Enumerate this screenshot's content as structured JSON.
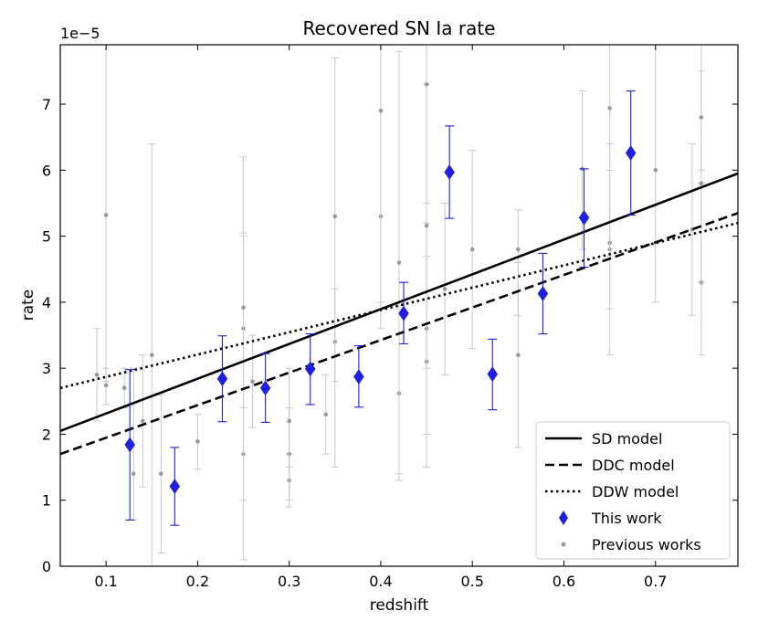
{
  "chart_data": {
    "type": "scatter",
    "title": "Recovered SN Ia rate",
    "xlabel": "redshift",
    "ylabel": "rate",
    "y_offset_label": "1e−5",
    "xlim": [
      0.05,
      0.79
    ],
    "ylim": [
      0,
      7.9
    ],
    "xticks": [
      0.1,
      0.2,
      0.3,
      0.4,
      0.5,
      0.6,
      0.7
    ],
    "xtick_labels": [
      "0.1",
      "0.2",
      "0.3",
      "0.4",
      "0.5",
      "0.6",
      "0.7"
    ],
    "yticks": [
      0,
      1,
      2,
      3,
      4,
      5,
      6,
      7
    ],
    "ytick_labels": [
      "0",
      "1",
      "2",
      "3",
      "4",
      "5",
      "6",
      "7"
    ],
    "grid": false,
    "legend_position": "bottom-right",
    "models": [
      {
        "name": "SD model",
        "style": "solid",
        "x": [
          0.05,
          0.79
        ],
        "y": [
          2.05,
          5.95
        ]
      },
      {
        "name": "DDC model",
        "style": "dashed",
        "x": [
          0.05,
          0.79
        ],
        "y": [
          1.7,
          5.35
        ]
      },
      {
        "name": "DDW model",
        "style": "dotted",
        "x": [
          0.05,
          0.79
        ],
        "y": [
          2.7,
          5.2
        ]
      }
    ],
    "this_work": {
      "name": "This work",
      "color": "#1f1fe0",
      "points": [
        {
          "x": 0.126,
          "y": 1.84,
          "lo": 0.7,
          "hi": 2.98
        },
        {
          "x": 0.175,
          "y": 1.21,
          "lo": 0.62,
          "hi": 1.8
        },
        {
          "x": 0.227,
          "y": 2.84,
          "lo": 2.19,
          "hi": 3.49
        },
        {
          "x": 0.274,
          "y": 2.7,
          "lo": 2.18,
          "hi": 3.22
        },
        {
          "x": 0.323,
          "y": 2.99,
          "lo": 2.45,
          "hi": 3.52
        },
        {
          "x": 0.376,
          "y": 2.87,
          "lo": 2.41,
          "hi": 3.34
        },
        {
          "x": 0.425,
          "y": 3.83,
          "lo": 3.37,
          "hi": 4.3
        },
        {
          "x": 0.475,
          "y": 5.97,
          "lo": 5.27,
          "hi": 6.67
        },
        {
          "x": 0.522,
          "y": 2.91,
          "lo": 2.37,
          "hi": 3.44
        },
        {
          "x": 0.577,
          "y": 4.13,
          "lo": 3.52,
          "hi": 4.74
        },
        {
          "x": 0.622,
          "y": 5.28,
          "lo": 4.53,
          "hi": 6.02
        },
        {
          "x": 0.673,
          "y": 6.26,
          "lo": 5.32,
          "hi": 7.2
        }
      ]
    },
    "previous_works": {
      "name": "Previous works",
      "color": "#999999",
      "points": [
        {
          "x": 0.09,
          "y": 2.9,
          "lo": 2.2,
          "hi": 3.6
        },
        {
          "x": 0.1,
          "y": 2.74,
          "lo": 2.45,
          "hi": 3.0
        },
        {
          "x": 0.1,
          "y": 5.32,
          "lo": 2.8,
          "hi": 7.9
        },
        {
          "x": 0.12,
          "y": 2.7,
          "lo": 2.4,
          "hi": 3.0
        },
        {
          "x": 0.13,
          "y": 1.4,
          "lo": 0.7,
          "hi": 3.0
        },
        {
          "x": 0.14,
          "y": 2.2,
          "lo": 1.2,
          "hi": 3.2
        },
        {
          "x": 0.15,
          "y": 3.2,
          "lo": 0.0,
          "hi": 6.4
        },
        {
          "x": 0.16,
          "y": 1.4,
          "lo": 0.2,
          "hi": 2.6
        },
        {
          "x": 0.2,
          "y": 1.89,
          "lo": 1.47,
          "hi": 2.3
        },
        {
          "x": 0.25,
          "y": 1.7,
          "lo": 0.1,
          "hi": 6.2
        },
        {
          "x": 0.25,
          "y": 3.6,
          "lo": 1.0,
          "hi": 5.05
        },
        {
          "x": 0.25,
          "y": 3.92,
          "lo": 2.4,
          "hi": 5.0
        },
        {
          "x": 0.26,
          "y": 2.8,
          "lo": 2.1,
          "hi": 3.5
        },
        {
          "x": 0.3,
          "y": 1.3,
          "lo": 0.9,
          "hi": 1.7
        },
        {
          "x": 0.3,
          "y": 1.7,
          "lo": 1.0,
          "hi": 2.4
        },
        {
          "x": 0.3,
          "y": 2.2,
          "lo": 1.5,
          "hi": 3.0
        },
        {
          "x": 0.34,
          "y": 2.3,
          "lo": 1.7,
          "hi": 2.9
        },
        {
          "x": 0.35,
          "y": 3.4,
          "lo": 1.5,
          "hi": 4.2
        },
        {
          "x": 0.35,
          "y": 5.3,
          "lo": 2.8,
          "hi": 7.7
        },
        {
          "x": 0.4,
          "y": 5.3,
          "lo": 3.6,
          "hi": 7.9
        },
        {
          "x": 0.4,
          "y": 6.9,
          "lo": 4.0,
          "hi": 7.9
        },
        {
          "x": 0.42,
          "y": 2.62,
          "lo": 1.3,
          "hi": 3.9
        },
        {
          "x": 0.42,
          "y": 4.6,
          "lo": 1.4,
          "hi": 7.8
        },
        {
          "x": 0.45,
          "y": 3.1,
          "lo": 1.5,
          "hi": 4.7
        },
        {
          "x": 0.45,
          "y": 3.6,
          "lo": 2.0,
          "hi": 5.2
        },
        {
          "x": 0.45,
          "y": 5.16,
          "lo": 3.0,
          "hi": 7.3
        },
        {
          "x": 0.45,
          "y": 7.3,
          "lo": 5.5,
          "hi": 7.9
        },
        {
          "x": 0.47,
          "y": 4.2,
          "lo": 2.9,
          "hi": 5.5
        },
        {
          "x": 0.5,
          "y": 4.8,
          "lo": 3.3,
          "hi": 6.3
        },
        {
          "x": 0.55,
          "y": 3.2,
          "lo": 1.8,
          "hi": 4.6
        },
        {
          "x": 0.55,
          "y": 4.8,
          "lo": 3.8,
          "hi": 5.4
        },
        {
          "x": 0.62,
          "y": 6.02,
          "lo": 4.8,
          "hi": 7.2
        },
        {
          "x": 0.65,
          "y": 4.8,
          "lo": 3.2,
          "hi": 6.4
        },
        {
          "x": 0.65,
          "y": 4.9,
          "lo": 3.9,
          "hi": 6.0
        },
        {
          "x": 0.65,
          "y": 6.94,
          "lo": 4.7,
          "hi": 7.9
        },
        {
          "x": 0.7,
          "y": 6.0,
          "lo": 4.0,
          "hi": 7.9
        },
        {
          "x": 0.74,
          "y": 5.1,
          "lo": 3.8,
          "hi": 6.4
        },
        {
          "x": 0.75,
          "y": 4.3,
          "lo": 3.2,
          "hi": 5.8
        },
        {
          "x": 0.75,
          "y": 5.8,
          "lo": 4.3,
          "hi": 7.5
        },
        {
          "x": 0.75,
          "y": 6.8,
          "lo": 6.0,
          "hi": 7.9
        }
      ]
    }
  }
}
